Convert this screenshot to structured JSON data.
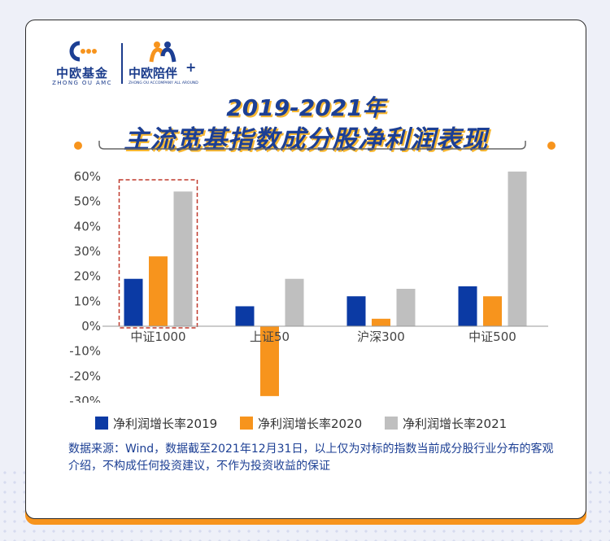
{
  "logos": {
    "left": {
      "name": "中欧基金",
      "sub": "ZHONG OU AMC"
    },
    "right": {
      "name": "中欧陪伴",
      "plus": "+",
      "sub": "ZHONG OU ACCOMPANY ALL AROUND"
    }
  },
  "header": {
    "title_line1": "2019-2021年",
    "title_line2": "主流宽基指数成分股净利润表现"
  },
  "colors": {
    "navy": "#1c3f94",
    "orange": "#f7941d",
    "highlight_border": "#c0392b"
  },
  "chart_data": {
    "type": "bar",
    "title": "2019-2021年主流宽基指数成分股净利润表现",
    "categories": [
      "中证1000",
      "上证50",
      "沪深300",
      "中证500"
    ],
    "series": [
      {
        "name": "净利润增长率2019",
        "color": "#0b3aa4",
        "values": [
          19,
          8,
          12,
          16
        ]
      },
      {
        "name": "净利润增长率2020",
        "color": "#f7941d",
        "values": [
          28,
          -28,
          3,
          12
        ]
      },
      {
        "name": "净利润增长率2021",
        "color": "#bfbfbf",
        "values": [
          54,
          19,
          15,
          62
        ]
      }
    ],
    "ylim": [
      -30,
      60
    ],
    "yticks": [
      "60%",
      "50%",
      "40%",
      "30%",
      "20%",
      "10%",
      "0%",
      "-10%",
      "-20%",
      "-30%"
    ],
    "ytick_values": [
      60,
      50,
      40,
      30,
      20,
      10,
      0,
      -10,
      -20,
      -30
    ],
    "grid": false,
    "legend_position": "bottom",
    "highlighted_category": "中证1000"
  },
  "source_note": "数据来源：Wind，数据截至2021年12月31日，以上仅为对标的指数当前成分股行业分布的客观介绍，不构成任何投资建议，不作为投资收益的保证"
}
